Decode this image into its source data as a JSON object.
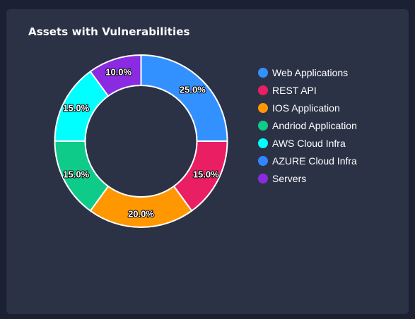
{
  "card": {
    "title": "Assets with Vulnerabilities"
  },
  "chart_data": {
    "type": "pie",
    "style": "donut",
    "title": "Assets with Vulnerabilities",
    "legend_position": "right",
    "categories": [
      "Web Applications",
      "REST API",
      "IOS Application",
      "Andriod Application",
      "AWS Cloud Infra",
      "AZURE Cloud Infra",
      "Servers"
    ],
    "values": [
      25,
      15,
      20,
      15,
      15,
      0,
      10
    ],
    "labels": [
      "25.0%",
      "15.0%",
      "20.0%",
      "15.0%",
      "15.0%",
      "",
      "10.0%"
    ],
    "colors": [
      "#3391ff",
      "#e91e63",
      "#ff9800",
      "#0ecb8a",
      "#00ffff",
      "#2f86ff",
      "#8a2be2"
    ]
  }
}
